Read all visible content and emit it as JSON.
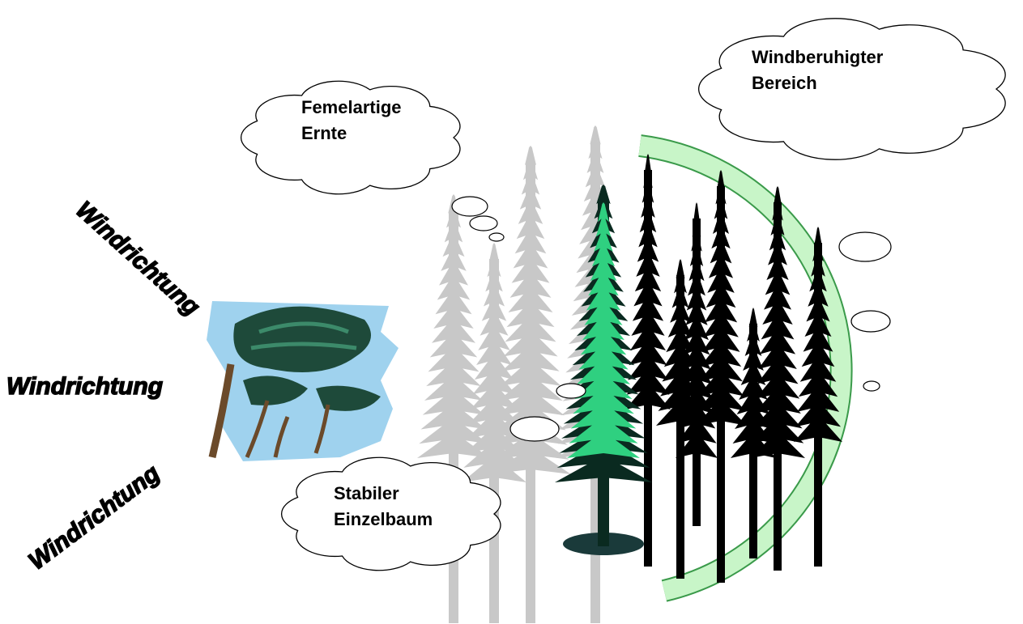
{
  "clouds": [
    {
      "lines": [
        "Femelartige",
        "Ernte"
      ]
    },
    {
      "lines": [
        "Windberuhigter",
        "Bereich"
      ]
    },
    {
      "lines": [
        "Stabiler",
        "Einzelbaum"
      ]
    }
  ],
  "wind_labels": [
    "Windrichtung",
    "Windrichtung",
    "Windrichtung"
  ]
}
